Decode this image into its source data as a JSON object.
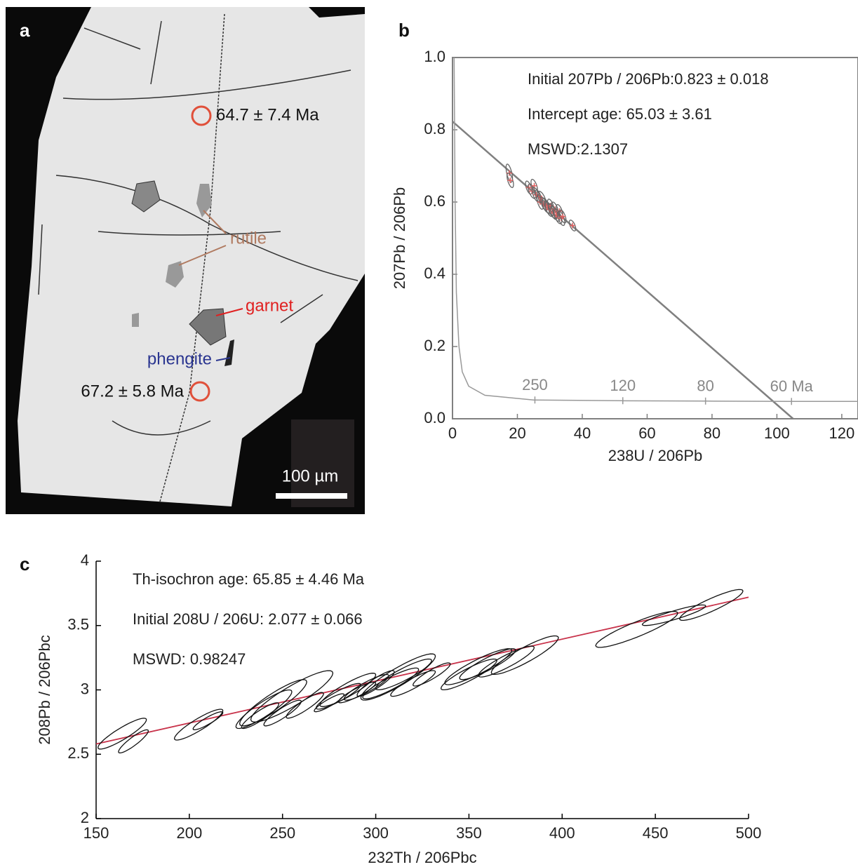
{
  "image_panel": {
    "label": "a",
    "ages": [
      "64.7 ± 7.4 Ma",
      "67.2 ± 5.8 Ma"
    ],
    "minerals": [
      "rutile",
      "garnet",
      "phengite"
    ],
    "scale_bar": "100 µm"
  },
  "chart_data": [
    {
      "type": "scatter",
      "panel_label": "b",
      "xlabel": "238U / 206Pb",
      "ylabel": "207Pb / 206Pb",
      "annotations": [
        "Initial 207Pb / 206Pb:0.823 ± 0.018",
        "Intercept age: 65.03 ± 3.61",
        "MSWD:2.1307"
      ],
      "xlim": [
        0,
        125
      ],
      "ylim": [
        0,
        1
      ],
      "xticks": [
        0,
        20,
        40,
        60,
        80,
        100,
        120
      ],
      "yticks": [
        {
          "value": 0,
          "label": "0.0"
        },
        0.2,
        0.4,
        0.6,
        0.8,
        {
          "value": 1,
          "label": "1.0"
        }
      ],
      "frame": "box",
      "axis_color": "#808080",
      "error_correlation": -0.6,
      "series": [
        {
          "color": "#666666",
          "marker_color": "#e06060",
          "x": [
            17.5,
            17.8,
            23.5,
            24.5,
            25.2,
            25.8,
            26.5,
            27.0,
            27.5,
            28.2,
            28.8,
            29.3,
            29.8,
            30.3,
            30.8,
            31.2,
            31.6,
            32.0,
            32.5,
            33.0,
            33.5,
            34.0,
            37.0
          ],
          "values": [
            0.68,
            0.66,
            0.64,
            0.63,
            0.645,
            0.62,
            0.615,
            0.6,
            0.61,
            0.595,
            0.59,
            0.585,
            0.58,
            0.59,
            0.575,
            0.57,
            0.58,
            0.565,
            0.56,
            0.575,
            0.555,
            0.56,
            0.535
          ],
          "x_err": [
            1.0,
            1.0,
            1.0,
            1.2,
            1.0,
            1.2,
            1.0,
            1.0,
            1.3,
            1.0,
            1.2,
            1.0,
            1.2,
            1.0,
            1.3,
            1.0,
            1.1,
            1.0,
            1.2,
            1.0,
            1.1,
            1.0,
            1.0
          ],
          "y_err": [
            0.025,
            0.02,
            0.018,
            0.02,
            0.018,
            0.02,
            0.018,
            0.02,
            0.02,
            0.018,
            0.02,
            0.018,
            0.02,
            0.018,
            0.02,
            0.018,
            0.02,
            0.018,
            0.02,
            0.018,
            0.02,
            0.018,
            0.015
          ]
        }
      ],
      "lines": [
        {
          "color": "#808080",
          "width": 2.5,
          "x": [
            0,
            105
          ],
          "values": [
            0.823,
            0
          ]
        },
        {
          "color": "#999999",
          "width": 1.5,
          "x": [
            0.5,
            0.8,
            1.2,
            2,
            3,
            5,
            10,
            25,
            52,
            78,
            104,
            125
          ],
          "values": [
            1.0,
            0.6,
            0.35,
            0.2,
            0.13,
            0.09,
            0.065,
            0.052,
            0.05,
            0.049,
            0.048,
            0.048
          ],
          "ticks": [
            {
              "value": 25.4,
              "label": "250"
            },
            {
              "value": 52.5,
              "label": "120"
            },
            {
              "value": 78,
              "label": "80"
            },
            {
              "value": 104.5,
              "label": "60 Ma"
            }
          ]
        }
      ]
    },
    {
      "type": "scatter",
      "panel_label": "c",
      "xlabel": "232Th / 206Pbc",
      "ylabel": "208Pb / 206Pbc",
      "annotations": [
        "Th-isochron age: 65.85 ± 4.46 Ma",
        "Initial 208U / 206U: 2.077 ± 0.066",
        "MSWD: 0.98247"
      ],
      "xlim": [
        150,
        500
      ],
      "ylim": [
        2,
        4
      ],
      "xticks": [
        150,
        200,
        250,
        300,
        350,
        400,
        450,
        500
      ],
      "yticks": [
        2,
        2.5,
        3,
        3.5,
        4
      ],
      "frame": "axes",
      "axis_color": "#000000",
      "error_correlation": 0.9,
      "series": [
        {
          "color": "#111111",
          "x": [
            164,
            170,
            205,
            210,
            240,
            245,
            250,
            238,
            255,
            262,
            275,
            280,
            285,
            290,
            295,
            300,
            308,
            312,
            315,
            320,
            330,
            350,
            355,
            360,
            370,
            380,
            440,
            460,
            480
          ],
          "values": [
            2.66,
            2.6,
            2.73,
            2.76,
            2.85,
            2.9,
            2.82,
            2.8,
            2.95,
            2.88,
            2.9,
            2.95,
            3.0,
            2.98,
            3.02,
            3.05,
            3.05,
            3.1,
            3.12,
            3.05,
            3.12,
            3.12,
            3.18,
            3.2,
            3.22,
            3.27,
            3.47,
            3.58,
            3.66
          ],
          "x_err": [
            13,
            8,
            13,
            8,
            15,
            18,
            10,
            10,
            22,
            10,
            8,
            12,
            15,
            10,
            12,
            10,
            15,
            20,
            15,
            12,
            10,
            15,
            18,
            15,
            15,
            18,
            22,
            17,
            17
          ],
          "y_err": [
            0.12,
            0.09,
            0.12,
            0.07,
            0.15,
            0.18,
            0.1,
            0.1,
            0.2,
            0.1,
            0.07,
            0.1,
            0.13,
            0.08,
            0.1,
            0.1,
            0.12,
            0.18,
            0.12,
            0.1,
            0.09,
            0.12,
            0.14,
            0.12,
            0.12,
            0.15,
            0.14,
            0.08,
            0.12
          ]
        }
      ],
      "lines": [
        {
          "color": "#c8324a",
          "width": 1.8,
          "x": [
            150,
            500
          ],
          "values": [
            2.58,
            3.72
          ]
        }
      ]
    }
  ]
}
